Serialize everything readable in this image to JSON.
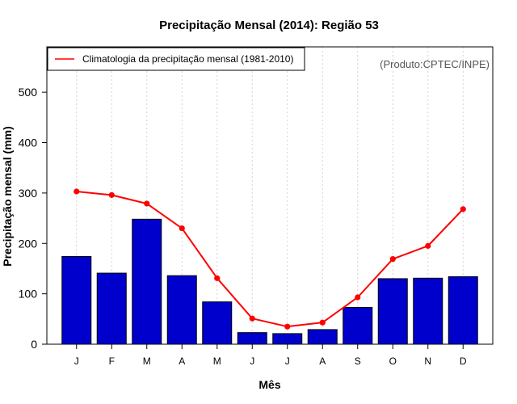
{
  "chart_data": {
    "type": "bar",
    "title": "Precipitação Mensal (2014): Região 53",
    "xlabel": "Mês",
    "ylabel": "Precipitação mensal (mm)",
    "ylim": [
      0,
      590
    ],
    "yticks": [
      0,
      100,
      200,
      300,
      400,
      500
    ],
    "categories": [
      "J",
      "F",
      "M",
      "A",
      "M",
      "J",
      "J",
      "A",
      "S",
      "O",
      "N",
      "D"
    ],
    "series": [
      {
        "name": "Precipitação mensal 2014",
        "type": "bar",
        "color": "#0000CC",
        "values": [
          174,
          141,
          248,
          136,
          84,
          23,
          21,
          29,
          73,
          130,
          131,
          134
        ]
      },
      {
        "name": "Climatologia da precipitação mensal (1981-2010)",
        "type": "line",
        "color": "#FF0000",
        "values": [
          303,
          296,
          279,
          230,
          131,
          51,
          35,
          43,
          93,
          169,
          195,
          268
        ]
      }
    ],
    "legend": {
      "label": "Climatologia da precipitação mensal (1981-2010)",
      "position": "top-left"
    },
    "source": "(Produto:CPTEC/INPE)",
    "grid": {
      "vertical": true,
      "horizontal": false
    }
  }
}
